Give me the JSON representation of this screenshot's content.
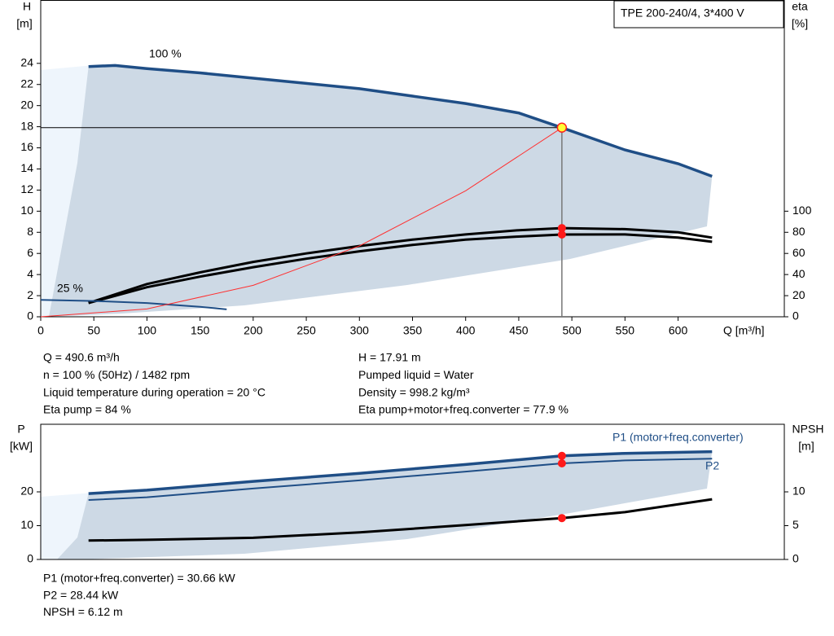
{
  "chart_data": [
    {
      "type": "line",
      "model_label": "TPE 200-240/4, 3*400 V",
      "y_label": [
        "H",
        "[m]"
      ],
      "y2_label": [
        "eta",
        "[%]"
      ],
      "x_label": "Q [m³/h]",
      "annotations": [
        "100 %",
        "25 %"
      ],
      "xlim": [
        0,
        700
      ],
      "xticks": [
        0,
        50,
        100,
        150,
        200,
        250,
        300,
        350,
        400,
        450,
        500,
        550,
        600
      ],
      "ylim": [
        0,
        30
      ],
      "yticks": [
        0,
        2,
        4,
        6,
        8,
        10,
        12,
        14,
        16,
        18,
        20,
        22,
        24
      ],
      "y2lim": [
        0,
        300
      ],
      "y2ticks": [
        0,
        20,
        40,
        60,
        80,
        100
      ],
      "duty_point": {
        "x": 490.6,
        "y": 17.91
      },
      "series": [
        {
          "color": "#1f4e86",
          "width": 3.5,
          "x": [
            45,
            70,
            100,
            150,
            200,
            250,
            300,
            350,
            400,
            450,
            490.6,
            550,
            600,
            632
          ],
          "values": [
            23.7,
            23.8,
            23.5,
            23.1,
            22.6,
            22.1,
            21.6,
            20.9,
            20.2,
            19.3,
            17.91,
            15.8,
            14.5,
            13.3
          ]
        },
        {
          "color": "#000000",
          "width": 3,
          "axis": "y2",
          "x": [
            45,
            100,
            150,
            200,
            250,
            300,
            350,
            400,
            450,
            490.6,
            550,
            600,
            632
          ],
          "values": [
            13,
            31,
            42,
            52,
            60,
            67,
            73,
            78,
            82,
            84,
            83,
            80,
            75
          ]
        },
        {
          "color": "#000000",
          "width": 3,
          "axis": "y2",
          "x": [
            45,
            100,
            150,
            200,
            250,
            300,
            350,
            400,
            450,
            490.6,
            550,
            600,
            632
          ],
          "values": [
            13,
            28,
            38,
            47,
            55,
            62,
            68,
            73,
            76,
            77.9,
            78,
            75,
            71
          ]
        },
        {
          "color": "#1f4e86",
          "width": 2,
          "x": [
            0,
            50,
            100,
            150,
            175
          ],
          "values": [
            1.6,
            1.5,
            1.3,
            0.95,
            0.7
          ]
        },
        {
          "color": "#ff3030",
          "width": 1,
          "x": [
            0,
            100,
            200,
            300,
            400,
            490.6
          ],
          "values": [
            0,
            0.74,
            2.98,
            6.71,
            11.93,
            17.91
          ]
        }
      ],
      "info": [
        [
          "Q = 490.6 m³/h",
          "n = 100 % (50Hz) / 1482 rpm",
          "Liquid temperature during operation = 20 °C",
          "Eta pump = 84 %"
        ],
        [
          "H = 17.91 m",
          "Pumped liquid = Water",
          "Density = 998.2 kg/m³",
          "Eta pump+motor+freq.converter = 77.9 %"
        ]
      ]
    },
    {
      "type": "line",
      "y_label": [
        "P",
        "[kW]"
      ],
      "y2_label": [
        "NPSH",
        "[m]"
      ],
      "xlim": [
        0,
        700
      ],
      "ylim": [
        0,
        40
      ],
      "yticks": [
        0,
        10,
        20
      ],
      "y2lim": [
        0,
        20
      ],
      "y2ticks": [
        0,
        5,
        10
      ],
      "duty_point": {
        "x": 490.6
      },
      "series": [
        {
          "name": "P1 (motor+freq.converter)",
          "color": "#1f4e86",
          "width": 3.5,
          "x": [
            45,
            100,
            200,
            300,
            400,
            490.6,
            550,
            632
          ],
          "values": [
            19.5,
            20.5,
            23.1,
            25.5,
            28.1,
            30.66,
            31.4,
            31.9
          ]
        },
        {
          "name": "P2",
          "color": "#1f4e86",
          "width": 2,
          "x": [
            45,
            100,
            200,
            300,
            400,
            490.6,
            550,
            632
          ],
          "values": [
            17.6,
            18.4,
            21.0,
            23.4,
            26.0,
            28.44,
            29.3,
            29.8
          ]
        },
        {
          "color": "#000000",
          "width": 3,
          "axis": "y2",
          "x": [
            45,
            100,
            200,
            300,
            400,
            490.6,
            550,
            632
          ],
          "values": [
            2.8,
            2.9,
            3.2,
            4.0,
            5.1,
            6.12,
            7.0,
            8.9
          ]
        }
      ],
      "info": [
        "P1 (motor+freq.converter) = 30.66 kW",
        "P2 = 28.44 kW",
        "NPSH = 6.12 m"
      ]
    }
  ]
}
